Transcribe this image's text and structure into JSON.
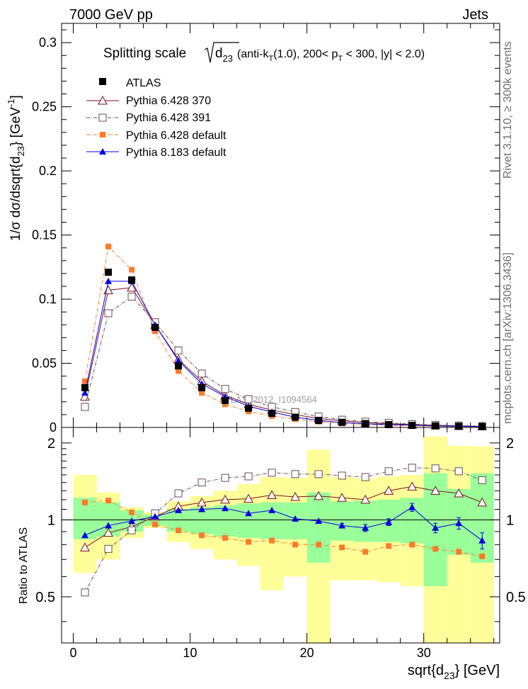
{
  "header": {
    "left": "7000 GeV pp",
    "right": "Jets"
  },
  "side_text": {
    "top": "Rivet 3.1.10, ≥ 300k events",
    "bottom": "mcplots.cern.ch [arXiv:1306.3436]"
  },
  "watermark": "ATLAS_2012_I1094564",
  "colors": {
    "atlas": "#000000",
    "py370": "#7a0f1f",
    "py391": "#6a4a5a",
    "pydefault": "#ff7a2a",
    "py8": "#0000e0",
    "band_inner": "#99ff99",
    "band_outer": "#ffff99"
  },
  "chart_data": [
    {
      "type": "line",
      "title_prefix": "Splitting scale",
      "title_rest": "(anti-k",
      "title_rest2": "(1.0), 200< p",
      "title_rest3": " < 300, |y| < 2.0)",
      "title_d": "d",
      "title_sub": "23",
      "title_T": "T",
      "ylabel": "1/σ dσ/dsqrt{d",
      "ylabel_sub": "23",
      "ylabel_end": "} [GeV",
      "ylabel_sup": "-1",
      "ylabel_close": "]",
      "xlim": [
        -1,
        36.5
      ],
      "ylim": [
        0,
        0.315
      ],
      "y_ticks": [
        "0.3",
        "0.25",
        "0.2",
        "0.15",
        "0.1",
        "0.05",
        "0"
      ],
      "x": [
        1,
        3,
        5,
        7,
        9,
        11,
        13,
        15,
        17,
        19,
        21,
        23,
        25,
        27,
        29,
        31,
        33,
        35
      ],
      "series": [
        {
          "name": "ATLAS",
          "marker": "square",
          "values": [
            0.031,
            0.121,
            0.115,
            0.078,
            0.048,
            0.031,
            0.021,
            0.015,
            0.011,
            0.008,
            0.0055,
            0.004,
            0.003,
            0.0022,
            0.0016,
            0.0012,
            0.0009,
            0.0007
          ]
        },
        {
          "name": "Pythia 6.428 370",
          "marker": "triangle-open",
          "values": [
            0.024,
            0.107,
            0.109,
            0.08,
            0.053,
            0.036,
            0.025,
            0.018,
            0.0135,
            0.01,
            0.007,
            0.0052,
            0.0038,
            0.0029,
            0.0022,
            0.0016,
            0.0012,
            0.0008
          ]
        },
        {
          "name": "Pythia 6.428 391",
          "marker": "square-open",
          "values": [
            0.016,
            0.089,
            0.102,
            0.082,
            0.06,
            0.042,
            0.03,
            0.022,
            0.016,
            0.012,
            0.0085,
            0.006,
            0.0045,
            0.0035,
            0.0026,
            0.0019,
            0.0014,
            0.001
          ]
        },
        {
          "name": "Pythia 6.428 default",
          "marker": "square-filled",
          "values": [
            0.036,
            0.141,
            0.123,
            0.075,
            0.044,
            0.027,
            0.018,
            0.0125,
            0.009,
            0.0065,
            0.0045,
            0.0032,
            0.0023,
            0.0017,
            0.0013,
            0.0009,
            0.0007,
            0.0005
          ]
        },
        {
          "name": "Pythia 8.183 default",
          "marker": "triangle-filled",
          "values": [
            0.027,
            0.114,
            0.114,
            0.08,
            0.052,
            0.034,
            0.024,
            0.0165,
            0.012,
            0.008,
            0.0055,
            0.0038,
            0.0028,
            0.0022,
            0.0018,
            0.0011,
            0.0009,
            0.0006
          ]
        }
      ]
    },
    {
      "type": "line",
      "ylabel": "Ratio to ATLAS",
      "xlabel": "sqrt{d",
      "xlabel_sub": "23",
      "xlabel_end": "} [GeV]",
      "xlim": [
        -1,
        36.5
      ],
      "ylim": [
        0.33,
        2.3
      ],
      "x_ticks": [
        "0",
        "10",
        "20",
        "30"
      ],
      "y_ticks": [
        "2",
        "1",
        "0.5"
      ],
      "x": [
        1,
        3,
        5,
        7,
        9,
        11,
        13,
        15,
        17,
        19,
        21,
        23,
        25,
        27,
        29,
        31,
        33,
        35
      ],
      "band_inner": [
        [
          0.84,
          1.22
        ],
        [
          0.86,
          1.17
        ],
        [
          0.9,
          1.09
        ],
        [
          0.95,
          1.05
        ],
        [
          0.9,
          1.1
        ],
        [
          0.88,
          1.12
        ],
        [
          0.86,
          1.14
        ],
        [
          0.85,
          1.16
        ],
        [
          0.84,
          1.17
        ],
        [
          0.84,
          1.17
        ],
        [
          0.68,
          1.28
        ],
        [
          0.83,
          1.18
        ],
        [
          0.82,
          1.19
        ],
        [
          0.82,
          1.2
        ],
        [
          0.81,
          1.22
        ],
        [
          0.55,
          1.52
        ],
        [
          0.73,
          1.32
        ],
        [
          0.68,
          1.52
        ]
      ],
      "band_outer": [
        [
          0.62,
          1.5
        ],
        [
          0.7,
          1.28
        ],
        [
          0.85,
          1.12
        ],
        [
          0.93,
          1.07
        ],
        [
          0.82,
          1.18
        ],
        [
          0.77,
          1.24
        ],
        [
          0.7,
          1.3
        ],
        [
          0.66,
          1.38
        ],
        [
          0.53,
          1.47
        ],
        [
          0.6,
          1.46
        ],
        [
          0.33,
          1.88
        ],
        [
          0.58,
          1.47
        ],
        [
          0.58,
          1.45
        ],
        [
          0.57,
          1.48
        ],
        [
          0.55,
          1.5
        ],
        [
          0.33,
          2.12
        ],
        [
          0.33,
          1.95
        ],
        [
          0.33,
          1.94
        ]
      ],
      "series": [
        {
          "name": "Pythia 6.428 370",
          "values": [
            0.78,
            0.89,
            0.94,
            1.03,
            1.13,
            1.17,
            1.2,
            1.21,
            1.25,
            1.23,
            1.24,
            1.22,
            1.2,
            1.3,
            1.35,
            1.3,
            1.27,
            1.17
          ]
        },
        {
          "name": "Pythia 6.428 391",
          "values": [
            0.52,
            0.77,
            0.91,
            1.06,
            1.27,
            1.4,
            1.46,
            1.48,
            1.53,
            1.51,
            1.51,
            1.49,
            1.47,
            1.55,
            1.6,
            1.59,
            1.55,
            1.43
          ]
        },
        {
          "name": "Pythia 6.428 default",
          "values": [
            1.17,
            1.19,
            1.07,
            0.96,
            0.91,
            0.87,
            0.85,
            0.82,
            0.83,
            0.8,
            0.8,
            0.78,
            0.75,
            0.79,
            0.8,
            0.77,
            0.75,
            0.72
          ]
        },
        {
          "name": "Pythia 8.183 default",
          "values": [
            0.87,
            0.95,
            0.99,
            1.03,
            1.09,
            1.1,
            1.11,
            1.06,
            1.09,
            1.01,
            0.99,
            0.95,
            0.93,
            0.98,
            1.12,
            0.93,
            0.97,
            0.83
          ],
          "errors": [
            0,
            0,
            0,
            0,
            0,
            0,
            0,
            0,
            0,
            0,
            0,
            0.02,
            0.03,
            0.03,
            0.04,
            0.04,
            0.05,
            0.06
          ]
        }
      ]
    }
  ]
}
